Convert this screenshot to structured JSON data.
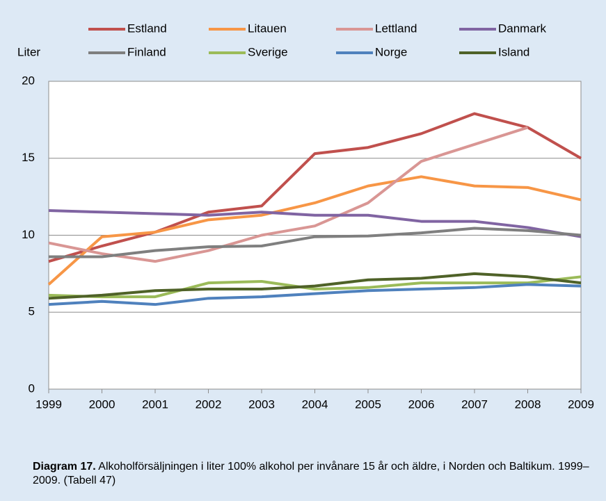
{
  "chart_data": {
    "type": "line",
    "y_axis_label": "Liter",
    "caption_label": "Diagram 17.",
    "caption": "Alkoholförsäljningen i liter 100% alkohol per invånare 15 år och äldre, i Norden och Baltikum. 1999–2009. (Tabell 47)",
    "x": [
      1999,
      2000,
      2001,
      2002,
      2003,
      2004,
      2005,
      2006,
      2007,
      2008,
      2009
    ],
    "xlim": [
      1999,
      2009
    ],
    "xticks": [
      1999,
      2000,
      2001,
      2002,
      2003,
      2004,
      2005,
      2006,
      2007,
      2008,
      2009
    ],
    "ylim": [
      0,
      20
    ],
    "yticks": [
      0,
      5,
      10,
      15,
      20
    ],
    "grid": true,
    "legend": "top",
    "series": [
      {
        "name": "Estland",
        "color": "#c0504d",
        "values": [
          8.3,
          9.3,
          10.2,
          11.5,
          11.9,
          15.3,
          15.7,
          16.6,
          17.9,
          17.0,
          15.0
        ]
      },
      {
        "name": "Litauen",
        "color": "#f79646",
        "values": [
          6.8,
          9.9,
          10.2,
          11.0,
          11.3,
          12.1,
          13.2,
          13.8,
          13.2,
          13.1,
          12.3
        ]
      },
      {
        "name": "Lettland",
        "color": "#d99694",
        "values": [
          9.5,
          8.8,
          8.3,
          9.0,
          10.0,
          10.6,
          12.1,
          14.8,
          15.9,
          17.0,
          null
        ]
      },
      {
        "name": "Danmark",
        "color": "#8064a2",
        "values": [
          11.6,
          11.5,
          11.4,
          11.3,
          11.5,
          11.3,
          11.3,
          10.9,
          10.9,
          10.5,
          9.9
        ]
      },
      {
        "name": "Finland",
        "color": "#7f7f7f",
        "values": [
          8.6,
          8.6,
          9.0,
          9.25,
          9.3,
          9.9,
          9.95,
          10.15,
          10.45,
          10.3,
          10.0
        ]
      },
      {
        "name": "Sverige",
        "color": "#9bbb59",
        "values": [
          6.1,
          6.0,
          6.0,
          6.9,
          7.0,
          6.5,
          6.6,
          6.9,
          6.9,
          6.9,
          7.3
        ]
      },
      {
        "name": "Norge",
        "color": "#4f81bd",
        "values": [
          5.5,
          5.7,
          5.5,
          5.9,
          6.0,
          6.2,
          6.4,
          6.5,
          6.6,
          6.8,
          6.7
        ]
      },
      {
        "name": "Island",
        "color": "#4f6228",
        "values": [
          5.9,
          6.1,
          6.4,
          6.5,
          6.5,
          6.7,
          7.1,
          7.2,
          7.5,
          7.3,
          6.9
        ]
      }
    ]
  }
}
